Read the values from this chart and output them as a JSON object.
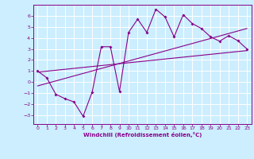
{
  "xlabel": "Windchill (Refroidissement éolien,°C)",
  "bg_color": "#cceeff",
  "grid_color": "#ffffff",
  "line_color": "#880088",
  "xlim": [
    -0.5,
    23.5
  ],
  "ylim": [
    -3.8,
    7.0
  ],
  "xticks": [
    0,
    1,
    2,
    3,
    4,
    5,
    6,
    7,
    8,
    9,
    10,
    11,
    12,
    13,
    14,
    15,
    16,
    17,
    18,
    19,
    20,
    21,
    22,
    23
  ],
  "yticks": [
    -3,
    -2,
    -1,
    0,
    1,
    2,
    3,
    4,
    5,
    6
  ],
  "zigzag_x": [
    0,
    1,
    2,
    3,
    4,
    5,
    6,
    7,
    8,
    9,
    10,
    11,
    12,
    13,
    14,
    15,
    16,
    17,
    18,
    19,
    20,
    21,
    22,
    23
  ],
  "zigzag_y": [
    1.0,
    0.4,
    -1.1,
    -1.5,
    -1.8,
    -3.1,
    -0.9,
    3.2,
    3.2,
    -0.85,
    4.5,
    5.7,
    4.5,
    6.6,
    5.9,
    4.1,
    6.1,
    5.3,
    4.85,
    4.1,
    3.7,
    4.2,
    3.75,
    3.0
  ],
  "line1_x": [
    0,
    23
  ],
  "line1_y": [
    0.9,
    2.85
  ],
  "line2_x": [
    0,
    23
  ],
  "line2_y": [
    -0.35,
    4.85
  ],
  "tick_fontsize": 4.5,
  "xlabel_fontsize": 5.0
}
